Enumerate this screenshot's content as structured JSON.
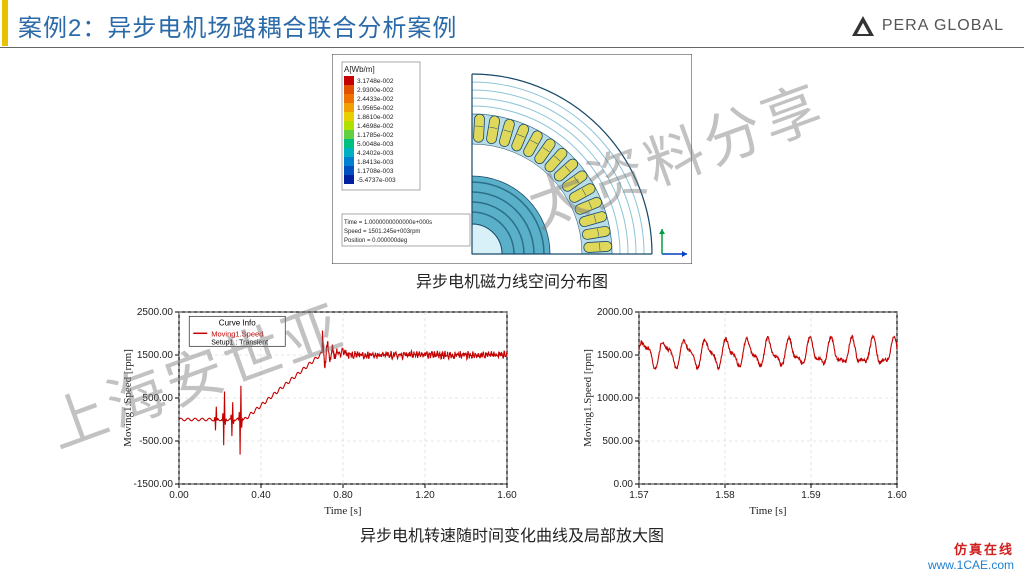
{
  "header": {
    "title": "案例2：异步电机场路耦合联合分析案例",
    "logo_text": "PERA GLOBAL"
  },
  "top_figure": {
    "caption": "异步电机磁力线空间分布图",
    "legend_title": "A[Wb/m]",
    "legend_values": [
      "3.1748e-002",
      "2.9300e-002",
      "2.4433e-002",
      "1.9565e-002",
      "1.8610e-002",
      "1.4698e-002",
      "1.1785e-002",
      "5.0048e-003",
      "4.2402e-003",
      "1.8413e-003",
      "1.1708e-003",
      "-5.4737e-003"
    ],
    "legend_colors": [
      "#c40000",
      "#e05000",
      "#f07000",
      "#f0a000",
      "#e8d000",
      "#b0e000",
      "#60d040",
      "#00c080",
      "#00b0c0",
      "#0080d0",
      "#0050c0",
      "#0020a0"
    ],
    "info_lines": [
      "Time = 1.0000000000000e+000s",
      "Speed = 1501.245e+003rpm",
      "Position = 0.000000deg"
    ],
    "slot_fill": "#e0d85a",
    "rotor_fill": "#5ab0c8",
    "outline": "#1a4a6a"
  },
  "bottom_caption": "异步电机转速随时间变化曲线及局部放大图",
  "chart_left": {
    "xlabel": "Time [s]",
    "ylabel": "Moving1.Speed [rpm]",
    "xlim": [
      0.0,
      1.6
    ],
    "ylim": [
      -1500,
      2500
    ],
    "xticks": [
      0.0,
      0.4,
      0.8,
      1.2,
      1.6
    ],
    "yticks": [
      -1500,
      -500,
      500,
      1500,
      2500
    ],
    "ytick_labels": [
      "-1500.00",
      "-500.00",
      "500.00",
      "1500.00",
      "2500.00"
    ],
    "xtick_labels": [
      "0.00",
      "0.40",
      "0.80",
      "1.20",
      "1.60"
    ],
    "legend_title": "Curve Info",
    "legend_item": "Moving1.Speed",
    "legend_sub": "Setup1 : Transient",
    "line_color": "#c40000",
    "grid_color": "#d0d0d0",
    "background": "#ffffff"
  },
  "chart_right": {
    "xlabel": "Time [s]",
    "ylabel": "Moving1.Speed [rpm]",
    "xlim": [
      1.57,
      1.6
    ],
    "ylim": [
      0,
      2000
    ],
    "xticks": [
      1.57,
      1.58,
      1.59,
      1.6
    ],
    "yticks": [
      0,
      500,
      1000,
      1500,
      2000
    ],
    "ytick_labels": [
      "0.00",
      "500.00",
      "1000.00",
      "1500.00",
      "2000.00"
    ],
    "xtick_labels": [
      "1.57",
      "1.58",
      "1.59",
      "1.60"
    ],
    "line_color": "#c40000",
    "grid_color": "#d0d0d0",
    "background": "#ffffff"
  },
  "watermark": "上海安世亚太资料分享",
  "footer": {
    "cn": "仿真在线",
    "url": "www.1CAE.com"
  }
}
